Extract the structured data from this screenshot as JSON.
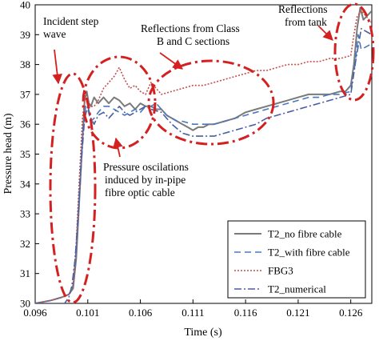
{
  "chart_data": {
    "type": "line",
    "title": "",
    "xlabel": "Time (s)",
    "ylabel": "Pressure head (m)",
    "xlim": [
      0.096,
      0.128
    ],
    "ylim": [
      30,
      40
    ],
    "xticks": [
      0.096,
      0.101,
      0.106,
      0.111,
      0.116,
      0.121,
      0.126
    ],
    "xtick_labels": [
      "0.096",
      "0.101",
      "0.106",
      "0.111",
      "0.116",
      "0.121",
      "0.126"
    ],
    "yticks": [
      30,
      31,
      32,
      33,
      34,
      35,
      36,
      37,
      38,
      39,
      40
    ],
    "ytick_labels": [
      "30",
      "31",
      "32",
      "33",
      "34",
      "35",
      "36",
      "37",
      "38",
      "39",
      "40"
    ],
    "grid": false,
    "legend_position": "bottom-right",
    "series": [
      {
        "name": "T2_no fibre cable",
        "color": "#7a7a7a",
        "dash": "solid",
        "x": [
          0.096,
          0.0975,
          0.0985,
          0.0992,
          0.0996,
          0.0999,
          0.1002,
          0.1005,
          0.1007,
          0.1009,
          0.1011,
          0.1013,
          0.1016,
          0.102,
          0.1025,
          0.103,
          0.1035,
          0.104,
          0.1045,
          0.105,
          0.1055,
          0.106,
          0.1065,
          0.107,
          0.1075,
          0.108,
          0.1085,
          0.109,
          0.1095,
          0.11,
          0.1105,
          0.111,
          0.1115,
          0.112,
          0.1125,
          0.113,
          0.114,
          0.115,
          0.116,
          0.117,
          0.118,
          0.119,
          0.12,
          0.121,
          0.122,
          0.123,
          0.124,
          0.125,
          0.1255,
          0.126,
          0.1263,
          0.1266,
          0.1269,
          0.1272,
          0.128
        ],
        "y": [
          30.0,
          30.1,
          30.2,
          30.3,
          30.5,
          31.5,
          33.5,
          35.5,
          36.8,
          37.1,
          36.7,
          36.6,
          36.9,
          36.7,
          36.9,
          36.7,
          36.9,
          36.8,
          36.6,
          36.7,
          36.5,
          36.7,
          36.6,
          36.6,
          36.5,
          36.5,
          36.3,
          36.2,
          36.1,
          36.0,
          35.9,
          35.8,
          35.9,
          35.9,
          36.0,
          36.0,
          36.1,
          36.2,
          36.4,
          36.5,
          36.6,
          36.7,
          36.8,
          36.9,
          37.0,
          37.0,
          37.0,
          37.1,
          37.1,
          37.3,
          38.0,
          39.2,
          39.9,
          39.5,
          39.8
        ]
      },
      {
        "name": "T2_with fibre cable",
        "color": "#4a78c0",
        "dash": "8,5",
        "x": [
          0.096,
          0.0975,
          0.0985,
          0.0992,
          0.0996,
          0.0999,
          0.1002,
          0.1005,
          0.1008,
          0.101,
          0.1013,
          0.1016,
          0.102,
          0.1025,
          0.103,
          0.1035,
          0.104,
          0.1045,
          0.105,
          0.1055,
          0.106,
          0.1065,
          0.107,
          0.1075,
          0.108,
          0.1085,
          0.109,
          0.1095,
          0.11,
          0.111,
          0.112,
          0.113,
          0.114,
          0.115,
          0.116,
          0.117,
          0.118,
          0.119,
          0.12,
          0.121,
          0.122,
          0.123,
          0.124,
          0.125,
          0.126,
          0.1264,
          0.1267,
          0.127,
          0.128
        ],
        "y": [
          30.0,
          30.1,
          30.2,
          30.3,
          30.6,
          31.8,
          33.8,
          35.6,
          36.6,
          36.5,
          36.1,
          36.2,
          36.4,
          36.6,
          36.6,
          36.5,
          36.4,
          36.3,
          36.4,
          36.5,
          36.4,
          36.6,
          36.6,
          36.7,
          36.5,
          36.3,
          36.2,
          36.1,
          36.1,
          36.0,
          36.0,
          36.0,
          36.1,
          36.2,
          36.3,
          36.4,
          36.5,
          36.6,
          36.7,
          36.8,
          36.9,
          36.9,
          37.0,
          37.0,
          37.1,
          38.0,
          39.0,
          38.5,
          38.7
        ]
      },
      {
        "name": "FBG3",
        "color": "#c0504d",
        "dash": "2,2",
        "x": [
          0.096,
          0.0975,
          0.0985,
          0.0992,
          0.0996,
          0.0999,
          0.1002,
          0.1005,
          0.1008,
          0.101,
          0.1013,
          0.1016,
          0.102,
          0.1025,
          0.103,
          0.1035,
          0.104,
          0.1045,
          0.105,
          0.1055,
          0.106,
          0.1065,
          0.107,
          0.1075,
          0.108,
          0.109,
          0.11,
          0.111,
          0.112,
          0.113,
          0.114,
          0.115,
          0.116,
          0.117,
          0.118,
          0.119,
          0.12,
          0.121,
          0.122,
          0.123,
          0.124,
          0.125,
          0.126,
          0.1263,
          0.1266,
          0.127,
          0.128
        ],
        "y": [
          30.0,
          30.1,
          30.2,
          30.3,
          30.6,
          32.0,
          34.2,
          36.2,
          37.0,
          36.8,
          36.6,
          36.6,
          36.8,
          37.2,
          37.4,
          37.6,
          37.9,
          37.5,
          37.2,
          37.3,
          37.1,
          37.0,
          37.4,
          37.2,
          37.0,
          37.1,
          37.2,
          37.3,
          37.3,
          37.4,
          37.5,
          37.6,
          37.7,
          37.8,
          37.8,
          37.9,
          38.0,
          38.0,
          38.1,
          38.1,
          38.2,
          38.2,
          38.3,
          39.0,
          39.6,
          39.8,
          39.4
        ]
      },
      {
        "name": "T2_numerical",
        "color": "#4a5fa0",
        "dash": "9,3,2,3",
        "x": [
          0.096,
          0.098,
          0.0988,
          0.0992,
          0.0995,
          0.0998,
          0.1001,
          0.1004,
          0.1007,
          0.101,
          0.1013,
          0.1016,
          0.102,
          0.1025,
          0.103,
          0.1035,
          0.104,
          0.1045,
          0.105,
          0.1055,
          0.106,
          0.1065,
          0.107,
          0.108,
          0.109,
          0.11,
          0.111,
          0.112,
          0.113,
          0.114,
          0.115,
          0.116,
          0.117,
          0.118,
          0.119,
          0.12,
          0.121,
          0.122,
          0.123,
          0.124,
          0.125,
          0.126,
          0.1265,
          0.127,
          0.128
        ],
        "y": [
          30.0,
          30.0,
          30.0,
          30.2,
          30.6,
          31.5,
          33.0,
          34.8,
          36.2,
          36.6,
          36.2,
          36.0,
          36.3,
          36.4,
          36.2,
          36.4,
          36.6,
          36.4,
          36.3,
          36.4,
          36.5,
          36.6,
          36.5,
          36.4,
          36.0,
          35.7,
          35.6,
          35.6,
          35.6,
          35.7,
          35.8,
          35.9,
          36.0,
          36.2,
          36.3,
          36.4,
          36.5,
          36.6,
          36.7,
          36.8,
          36.9,
          37.0,
          38.2,
          39.2,
          39.0
        ]
      }
    ],
    "annotations": [
      {
        "id": "incident",
        "lines": [
          "Incident step",
          "wave"
        ]
      },
      {
        "id": "class-bc",
        "lines": [
          "Reflections from Class",
          "B and C sections"
        ]
      },
      {
        "id": "tank",
        "lines": [
          "Reflections",
          "from tank"
        ]
      },
      {
        "id": "oscillations",
        "lines": [
          "Pressure oscilations",
          "induced by in-pipe",
          "fibre optic cable"
        ]
      }
    ],
    "highlight_color": "#d42020"
  }
}
